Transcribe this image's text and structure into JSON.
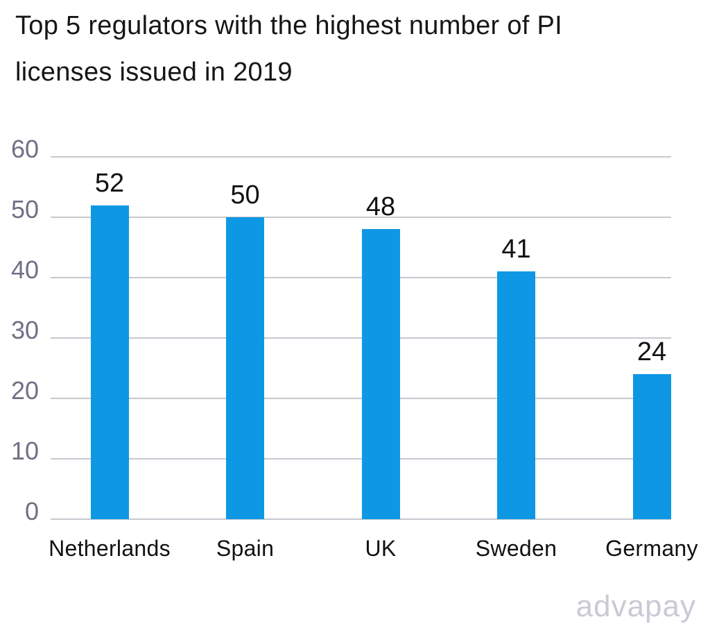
{
  "title": {
    "line1": "Top 5 regulators with the highest number of PI",
    "line2": "licenses issued in 2019"
  },
  "watermark": "advapay",
  "colors": {
    "bar": "#0E98E4",
    "grid": "#C8C8D0",
    "tick_label": "#6F7086",
    "text": "#161616",
    "watermark": "#C9CAD5",
    "background": "#FFFFFF"
  },
  "chart_data": {
    "type": "bar",
    "title": "Top 5 regulators with the highest number of PI licenses issued in 2019",
    "categories": [
      "Netherlands",
      "Spain",
      "UK",
      "Sweden",
      "Germany"
    ],
    "values": [
      52,
      50,
      48,
      41,
      24
    ],
    "data_labels": [
      52,
      50,
      48,
      41,
      24
    ],
    "xlabel": "",
    "ylabel": "",
    "ylim": [
      0,
      60
    ],
    "yticks": [
      60,
      50,
      40,
      30,
      20,
      10,
      0
    ],
    "grid": true,
    "legend": false,
    "bar_color": "#0E98E4",
    "annotation": "advapay"
  }
}
